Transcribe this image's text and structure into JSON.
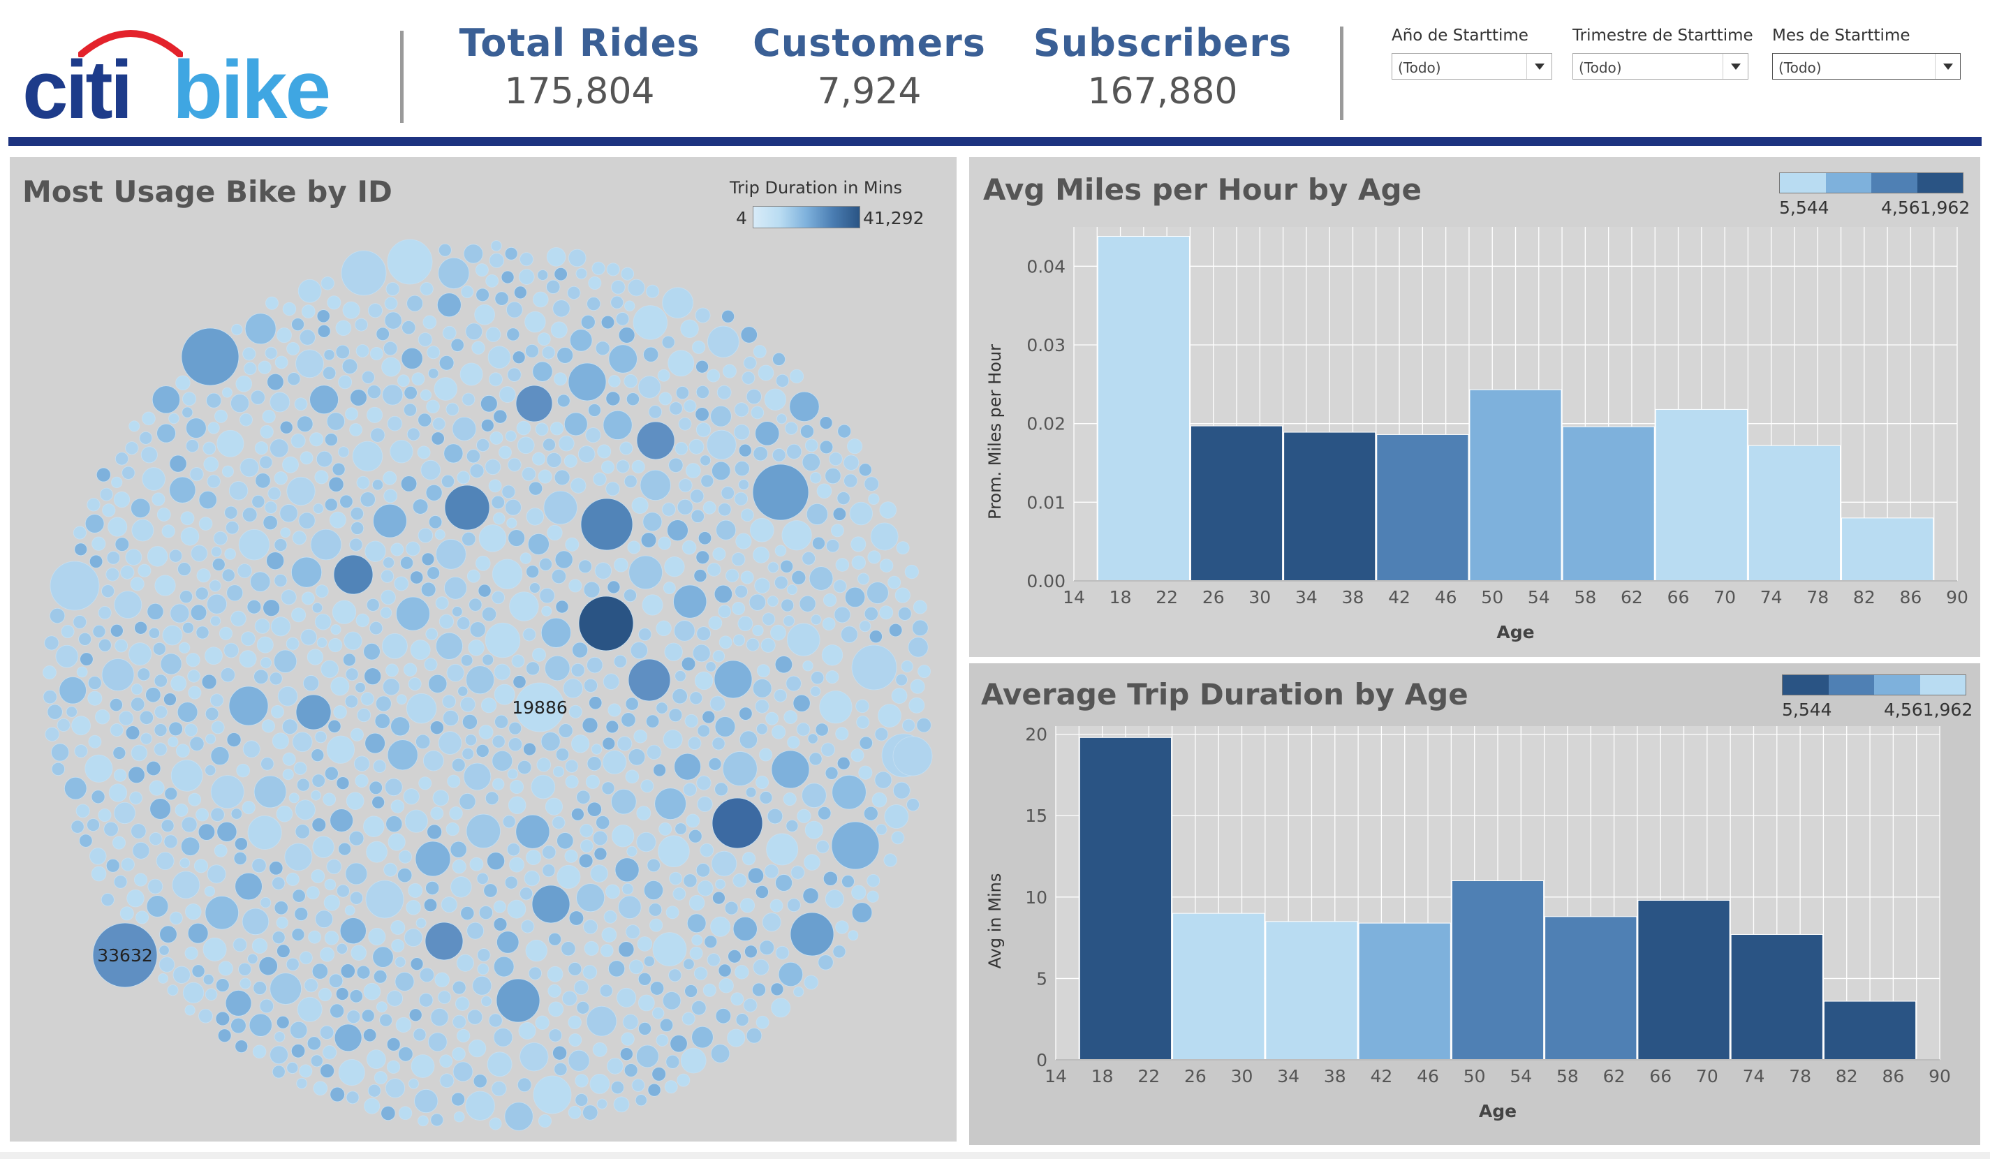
{
  "header": {
    "logo": {
      "part1": "citi",
      "part2": "bike"
    },
    "kpis": [
      {
        "title": "Total Rides",
        "value": "175,804"
      },
      {
        "title": "Customers",
        "value": "7,924"
      },
      {
        "title": "Subscribers",
        "value": "167,880"
      }
    ],
    "filters": [
      {
        "label": "Año de Starttime",
        "value": "(Todo)"
      },
      {
        "label": "Trimestre de Starttime",
        "value": "(Todo)"
      },
      {
        "label": "Mes de Starttime",
        "value": "(Todo)"
      }
    ]
  },
  "colors": {
    "brand_dark": "#1d3b8a",
    "brand_light": "#3fa6e2",
    "rule": "#1d3380",
    "kpi_title": "#3a5f95",
    "step1": "#b9dcf2",
    "step2": "#7eb1dc",
    "step3": "#4f80b4",
    "step4": "#2a5484"
  },
  "chart_data": [
    {
      "type": "bubble",
      "title": "Most Usage Bike by ID",
      "legend": {
        "title": "Trip Duration in Mins",
        "min": "4",
        "max": "41,292"
      },
      "labeled_bubbles": [
        "19886",
        "33632"
      ]
    },
    {
      "type": "bar",
      "title": "Avg Miles per Hour by Age",
      "xlabel": "Age",
      "ylabel": "Prom. Miles per Hour",
      "x_ticks": [
        "14",
        "18",
        "22",
        "26",
        "30",
        "34",
        "38",
        "42",
        "46",
        "50",
        "54",
        "58",
        "62",
        "66",
        "70",
        "74",
        "78",
        "82",
        "86",
        "90"
      ],
      "y_ticks": [
        "0.00",
        "0.01",
        "0.02",
        "0.03",
        "0.04"
      ],
      "ylim": [
        0,
        0.045
      ],
      "xlim": [
        14,
        90
      ],
      "legend": {
        "min": "5,544",
        "max": "4,561,962"
      },
      "bars": [
        {
          "start": 18,
          "end": 22,
          "value": 0.0438,
          "color": "#b9dcf2"
        },
        {
          "start": 26,
          "end": 30,
          "value": 0.0197,
          "color": "#2a5484"
        },
        {
          "start": 34,
          "end": 38,
          "value": 0.0189,
          "color": "#2a5484"
        },
        {
          "start": 42,
          "end": 46,
          "value": 0.0186,
          "color": "#4f80b4"
        },
        {
          "start": 50,
          "end": 54,
          "value": 0.0243,
          "color": "#7eb1dc"
        },
        {
          "start": 58,
          "end": 62,
          "value": 0.0196,
          "color": "#7eb1dc"
        },
        {
          "start": 66,
          "end": 70,
          "value": 0.0218,
          "color": "#b9dcf2"
        },
        {
          "start": 74,
          "end": 78,
          "value": 0.0172,
          "color": "#b9dcf2"
        },
        {
          "start": 82,
          "end": 86,
          "value": 0.008,
          "color": "#b9dcf2"
        }
      ]
    },
    {
      "type": "bar",
      "title": "Average Trip Duration by Age",
      "xlabel": "Age",
      "ylabel": "Avg in Mins",
      "x_ticks": [
        "14",
        "18",
        "22",
        "26",
        "30",
        "34",
        "38",
        "42",
        "46",
        "50",
        "54",
        "58",
        "62",
        "66",
        "70",
        "74",
        "78",
        "82",
        "86",
        "90"
      ],
      "y_ticks": [
        "0",
        "5",
        "10",
        "15",
        "20"
      ],
      "ylim": [
        0,
        20.5
      ],
      "xlim": [
        14,
        90
      ],
      "legend": {
        "min": "5,544",
        "max": "4,561,962"
      },
      "bars": [
        {
          "start": 18,
          "end": 22,
          "value": 19.8,
          "color": "#2a5484"
        },
        {
          "start": 26,
          "end": 30,
          "value": 9.0,
          "color": "#b9dcf2"
        },
        {
          "start": 34,
          "end": 38,
          "value": 8.5,
          "color": "#b9dcf2"
        },
        {
          "start": 42,
          "end": 46,
          "value": 8.4,
          "color": "#7eb1dc"
        },
        {
          "start": 50,
          "end": 54,
          "value": 11.0,
          "color": "#4f80b4"
        },
        {
          "start": 58,
          "end": 62,
          "value": 8.8,
          "color": "#4f80b4"
        },
        {
          "start": 66,
          "end": 70,
          "value": 9.8,
          "color": "#2a5484"
        },
        {
          "start": 74,
          "end": 78,
          "value": 7.7,
          "color": "#2a5484"
        },
        {
          "start": 82,
          "end": 86,
          "value": 3.6,
          "color": "#2a5484"
        }
      ]
    }
  ]
}
